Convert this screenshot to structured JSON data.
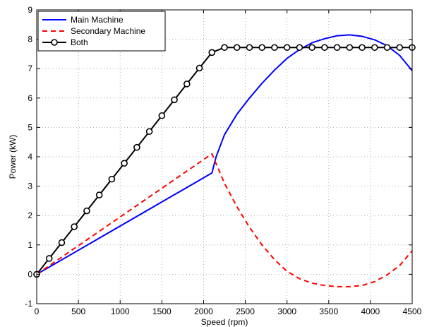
{
  "chart_data": {
    "type": "line",
    "title": "",
    "xlabel": "Speed (rpm)",
    "ylabel": "Power (kW)",
    "xlim": [
      0,
      4500
    ],
    "ylim": [
      -1,
      9
    ],
    "xticks": [
      0,
      500,
      1000,
      1500,
      2000,
      2500,
      3000,
      3500,
      4000,
      4500
    ],
    "yticks": [
      -1,
      0,
      1,
      2,
      3,
      4,
      5,
      6,
      7,
      8,
      9
    ],
    "grid": true,
    "legend_position": "top-left",
    "series": [
      {
        "name": "Main Machine",
        "color": "#0000ff",
        "style": "solid",
        "x": [
          0,
          2100,
          2150,
          2250,
          2400,
          2550,
          2700,
          2850,
          3000,
          3150,
          3300,
          3450,
          3600,
          3750,
          3900,
          4050,
          4200,
          4350,
          4500
        ],
        "y": [
          0,
          3.45,
          4.0,
          4.75,
          5.45,
          6.0,
          6.5,
          6.95,
          7.35,
          7.65,
          7.88,
          8.02,
          8.12,
          8.15,
          8.1,
          7.98,
          7.78,
          7.45,
          6.93
        ]
      },
      {
        "name": "Secondary Machine",
        "color": "#ff0000",
        "style": "dashed",
        "x": [
          0,
          2100,
          2250,
          2400,
          2550,
          2700,
          2850,
          3000,
          3150,
          3300,
          3450,
          3600,
          3750,
          3900,
          4050,
          4200,
          4350,
          4500
        ],
        "y": [
          0,
          4.1,
          3.1,
          2.3,
          1.6,
          1.0,
          0.5,
          0.1,
          -0.15,
          -0.3,
          -0.38,
          -0.42,
          -0.42,
          -0.38,
          -0.25,
          -0.02,
          0.3,
          0.8
        ]
      },
      {
        "name": "Both",
        "color": "#000000",
        "style": "solid-circle-markers",
        "x": [
          0,
          150,
          300,
          450,
          600,
          750,
          900,
          1050,
          1200,
          1350,
          1500,
          1650,
          1800,
          1950,
          2100,
          2250,
          2400,
          2550,
          2700,
          2850,
          3000,
          3150,
          3300,
          3450,
          3600,
          3750,
          3900,
          4050,
          4200,
          4350,
          4500
        ],
        "y": [
          0,
          0.54,
          1.08,
          1.62,
          2.16,
          2.7,
          3.24,
          3.78,
          4.32,
          4.86,
          5.4,
          5.94,
          6.48,
          7.02,
          7.55,
          7.72,
          7.72,
          7.72,
          7.72,
          7.72,
          7.72,
          7.72,
          7.72,
          7.72,
          7.72,
          7.72,
          7.72,
          7.72,
          7.72,
          7.72,
          7.72
        ]
      }
    ]
  }
}
